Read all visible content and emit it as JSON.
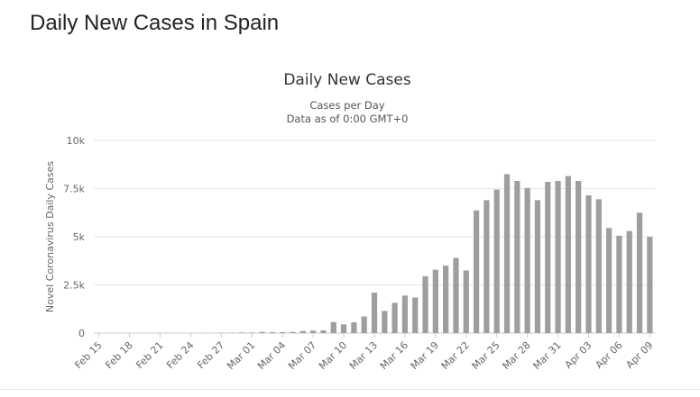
{
  "page": {
    "heading": "Daily New Cases in Spain"
  },
  "colors": {
    "bar": "#9e9e9e",
    "grid": "#e6e6e6",
    "axis_text": "#666666",
    "title_text": "#333333"
  },
  "chart_data": {
    "type": "bar",
    "title": "Daily New Cases",
    "subtitle_line1": "Cases per Day",
    "subtitle_line2": "Data as of 0:00 GMT+0",
    "xlabel": "",
    "ylabel": "Novel Coronavirus Daily Cases",
    "ylim": [
      0,
      10000
    ],
    "yticks": [
      0,
      2500,
      5000,
      7500,
      10000
    ],
    "ytick_labels": [
      "0",
      "2.5k",
      "5k",
      "7.5k",
      "10k"
    ],
    "grid": true,
    "legend": "none",
    "categories": [
      "Feb 15",
      "Feb 16",
      "Feb 17",
      "Feb 18",
      "Feb 19",
      "Feb 20",
      "Feb 21",
      "Feb 22",
      "Feb 23",
      "Feb 24",
      "Feb 25",
      "Feb 26",
      "Feb 27",
      "Feb 28",
      "Feb 29",
      "Mar 01",
      "Mar 02",
      "Mar 03",
      "Mar 04",
      "Mar 05",
      "Mar 06",
      "Mar 07",
      "Mar 08",
      "Mar 09",
      "Mar 10",
      "Mar 11",
      "Mar 12",
      "Mar 13",
      "Mar 14",
      "Mar 15",
      "Mar 16",
      "Mar 17",
      "Mar 18",
      "Mar 19",
      "Mar 20",
      "Mar 21",
      "Mar 22",
      "Mar 23",
      "Mar 24",
      "Mar 25",
      "Mar 26",
      "Mar 27",
      "Mar 28",
      "Mar 29",
      "Mar 30",
      "Mar 31",
      "Apr 01",
      "Apr 02",
      "Apr 03",
      "Apr 04",
      "Apr 05",
      "Apr 06",
      "Apr 07",
      "Apr 08",
      "Apr 09"
    ],
    "x_tick_labels": [
      "Feb 15",
      "Feb 18",
      "Feb 21",
      "Feb 24",
      "Feb 27",
      "Mar 01",
      "Mar 04",
      "Mar 07",
      "Mar 10",
      "Mar 13",
      "Mar 16",
      "Mar 19",
      "Mar 22",
      "Mar 25",
      "Mar 28",
      "Mar 31",
      "Apr 03",
      "Apr 06",
      "Apr 09"
    ],
    "values": [
      0,
      0,
      0,
      0,
      0,
      0,
      0,
      0,
      0,
      0,
      6,
      0,
      10,
      15,
      30,
      30,
      60,
      50,
      50,
      60,
      110,
      130,
      140,
      570,
      450,
      560,
      860,
      2100,
      1150,
      1570,
      1950,
      1850,
      2950,
      3290,
      3500,
      3900,
      3250,
      6370,
      6900,
      7450,
      8250,
      7900,
      7530,
      6900,
      7850,
      7900,
      8150,
      7900,
      7150,
      6950,
      5450,
      5050,
      5300,
      6250,
      5000
    ]
  }
}
